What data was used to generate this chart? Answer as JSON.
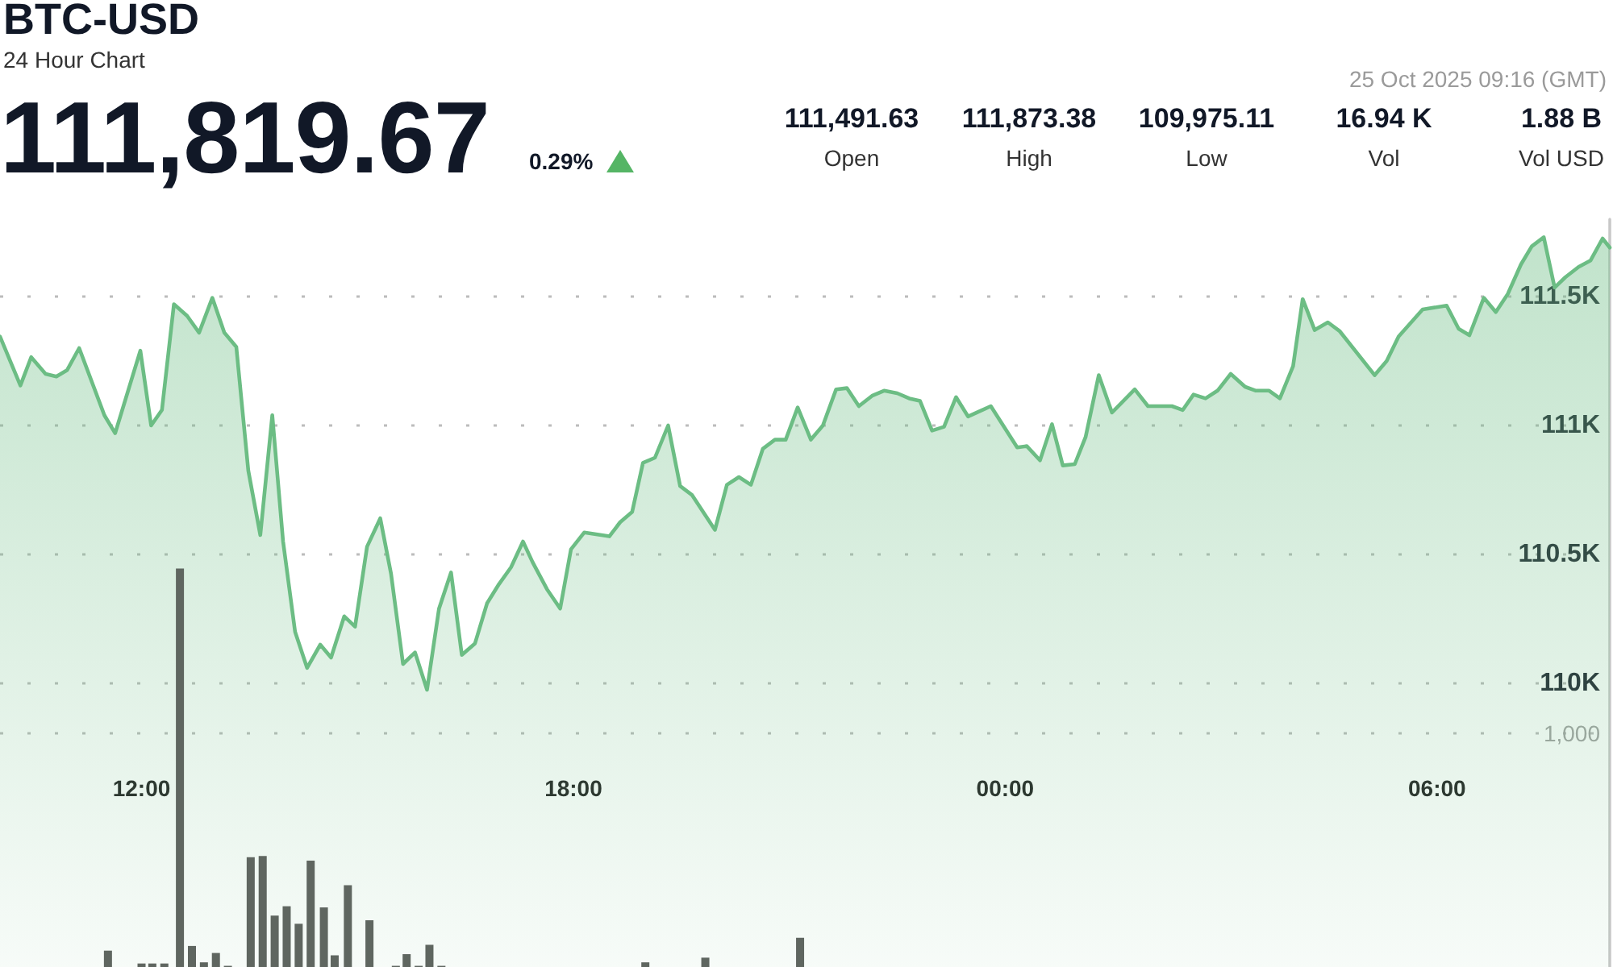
{
  "chart_data": {
    "type": "area",
    "title": "BTC-USD",
    "subtitle": "24 Hour Chart",
    "annotations": [
      "111,819.67",
      "0.29%",
      "111,491.63",
      "Open",
      "111,873.38",
      "High",
      "109,975.11",
      "Low",
      "16.94 K",
      "Vol",
      "1.88 B",
      "Vol USD",
      "25 Oct 2025 09:16 (GMT)"
    ],
    "xlim": [
      "2025-10-24T10:02",
      "2025-10-25T08:24"
    ],
    "xticks": [
      {
        "value": "2025-10-24T12:00",
        "label": "12:00"
      },
      {
        "value": "2025-10-24T18:00",
        "label": "18:00"
      },
      {
        "value": "2025-10-25T00:00",
        "label": "00:00"
      },
      {
        "value": "2025-10-25T06:00",
        "label": "06:00"
      }
    ],
    "ylim": [
      108900,
      111800
    ],
    "yticks": [
      {
        "value": 110000,
        "label": "110K"
      },
      {
        "value": 110500,
        "label": "110.5K"
      },
      {
        "value": 111000,
        "label": "111K"
      },
      {
        "value": 111500,
        "label": "111.5K"
      }
    ],
    "y2lim": [
      0,
      3200
    ],
    "y2ticks": [
      {
        "value": 1000,
        "label": "1,000"
      }
    ],
    "grid": "y",
    "series": [
      {
        "color": "#6cbd84",
        "x": [
          "2025-10-24T10:02",
          "2025-10-24T10:19",
          "2025-10-24T10:28",
          "2025-10-24T10:40",
          "2025-10-24T10:49",
          "2025-10-24T10:58",
          "2025-10-24T11:08",
          "2025-10-24T11:29",
          "2025-10-24T11:38",
          "2025-10-24T11:59",
          "2025-10-24T12:08",
          "2025-10-24T12:17",
          "2025-10-24T12:27",
          "2025-10-24T12:38",
          "2025-10-24T12:48",
          "2025-10-24T12:59",
          "2025-10-24T13:09",
          "2025-10-24T13:19",
          "2025-10-24T13:29",
          "2025-10-24T13:39",
          "2025-10-24T13:49",
          "2025-10-24T13:58",
          "2025-10-24T14:08",
          "2025-10-24T14:18",
          "2025-10-24T14:29",
          "2025-10-24T14:38",
          "2025-10-24T14:49",
          "2025-10-24T14:58",
          "2025-10-24T15:08",
          "2025-10-24T15:19",
          "2025-10-24T15:28",
          "2025-10-24T15:38",
          "2025-10-24T15:48",
          "2025-10-24T15:58",
          "2025-10-24T16:08",
          "2025-10-24T16:18",
          "2025-10-24T16:27",
          "2025-10-24T16:38",
          "2025-10-24T16:48",
          "2025-10-24T16:58",
          "2025-10-24T17:08",
          "2025-10-24T17:18",
          "2025-10-24T17:26",
          "2025-10-24T17:38",
          "2025-10-24T17:49",
          "2025-10-24T17:58",
          "2025-10-24T18:09",
          "2025-10-24T18:30",
          "2025-10-24T18:39",
          "2025-10-24T18:49",
          "2025-10-24T18:58",
          "2025-10-24T19:08",
          "2025-10-24T19:19",
          "2025-10-24T19:29",
          "2025-10-24T19:39",
          "2025-10-24T19:58",
          "2025-10-24T20:08",
          "2025-10-24T20:18",
          "2025-10-24T20:28",
          "2025-10-24T20:38",
          "2025-10-24T20:48",
          "2025-10-24T20:57",
          "2025-10-24T21:07",
          "2025-10-24T21:18",
          "2025-10-24T21:28",
          "2025-10-24T21:39",
          "2025-10-24T21:48",
          "2025-10-24T21:58",
          "2025-10-24T22:09",
          "2025-10-24T22:19",
          "2025-10-24T22:30",
          "2025-10-24T22:40",
          "2025-10-24T22:49",
          "2025-10-24T22:59",
          "2025-10-24T23:09",
          "2025-10-24T23:19",
          "2025-10-24T23:29",
          "2025-10-24T23:48",
          "2025-10-25T00:10",
          "2025-10-25T00:18",
          "2025-10-25T00:29",
          "2025-10-25T00:39",
          "2025-10-25T00:48",
          "2025-10-25T00:58",
          "2025-10-25T01:07",
          "2025-10-25T01:18",
          "2025-10-25T01:29",
          "2025-10-25T01:48",
          "2025-10-25T01:59",
          "2025-10-25T02:19",
          "2025-10-25T02:28",
          "2025-10-25T02:37",
          "2025-10-25T02:47",
          "2025-10-25T02:57",
          "2025-10-25T03:08",
          "2025-10-25T03:20",
          "2025-10-25T03:29",
          "2025-10-25T03:40",
          "2025-10-25T03:49",
          "2025-10-25T04:00",
          "2025-10-25T04:08",
          "2025-10-25T04:18",
          "2025-10-25T04:29",
          "2025-10-25T04:39",
          "2025-10-25T05:08",
          "2025-10-25T05:18",
          "2025-10-25T05:28",
          "2025-10-25T05:48",
          "2025-10-25T06:08",
          "2025-10-25T06:18",
          "2025-10-25T06:27",
          "2025-10-25T06:39",
          "2025-10-25T06:49",
          "2025-10-25T06:59",
          "2025-10-25T07:10",
          "2025-10-25T07:19",
          "2025-10-25T07:29",
          "2025-10-25T07:38",
          "2025-10-25T07:47",
          "2025-10-25T07:58",
          "2025-10-25T08:08",
          "2025-10-25T08:18",
          "2025-10-25T08:24"
        ],
        "values": [
          111345,
          111155,
          111265,
          111200,
          111190,
          111215,
          111300,
          111040,
          110970,
          111290,
          111000,
          111060,
          111470,
          111425,
          111360,
          111495,
          111360,
          111305,
          110825,
          110575,
          111040,
          110550,
          110200,
          110060,
          110150,
          110100,
          110260,
          110220,
          110530,
          110640,
          110425,
          110075,
          110120,
          109975,
          110290,
          110430,
          110110,
          110155,
          110310,
          110385,
          110450,
          110550,
          110470,
          110365,
          110290,
          110520,
          110585,
          110570,
          110625,
          110665,
          110855,
          110875,
          111000,
          110765,
          110730,
          110595,
          110770,
          110800,
          110770,
          110910,
          110945,
          110945,
          111070,
          110945,
          111000,
          111140,
          111145,
          111075,
          111115,
          111135,
          111125,
          111105,
          111095,
          110980,
          110995,
          111110,
          111035,
          111075,
          110915,
          110920,
          110865,
          111005,
          110845,
          110850,
          110955,
          111195,
          111050,
          111140,
          111075,
          111075,
          111060,
          111120,
          111105,
          111135,
          111200,
          111150,
          111135,
          111135,
          111105,
          111230,
          111490,
          111370,
          111400,
          111365,
          111195,
          111250,
          111345,
          111450,
          111465,
          111375,
          111350,
          111495,
          111440,
          111510,
          111625,
          111695,
          111730,
          111535,
          111575,
          111615,
          111640,
          111725,
          111690
        ]
      },
      {
        "type": "bar",
        "axis": "y2",
        "color": "#5f6660",
        "x": [
          "2025-10-24T11:32",
          "2025-10-24T12:00",
          "2025-10-24T12:09",
          "2025-10-24T12:19",
          "2025-10-24T12:32",
          "2025-10-24T12:42",
          "2025-10-24T12:52",
          "2025-10-24T13:02",
          "2025-10-24T13:12",
          "2025-10-24T13:31",
          "2025-10-24T13:41",
          "2025-10-24T13:51",
          "2025-10-24T14:01",
          "2025-10-24T14:11",
          "2025-10-24T14:21",
          "2025-10-24T14:32",
          "2025-10-24T14:41",
          "2025-10-24T14:52",
          "2025-10-24T15:10",
          "2025-10-24T15:32",
          "2025-10-24T15:41",
          "2025-10-24T15:51",
          "2025-10-24T16:00",
          "2025-10-24T16:10",
          "2025-10-24T19:00",
          "2025-10-24T19:50",
          "2025-10-24T21:09"
        ],
        "values": [
          70,
          15,
          15,
          15,
          1705,
          90,
          20,
          60,
          5,
          470,
          475,
          220,
          260,
          185,
          455,
          255,
          50,
          350,
          200,
          5,
          55,
          5,
          95,
          5,
          20,
          40,
          125
        ]
      }
    ]
  }
}
